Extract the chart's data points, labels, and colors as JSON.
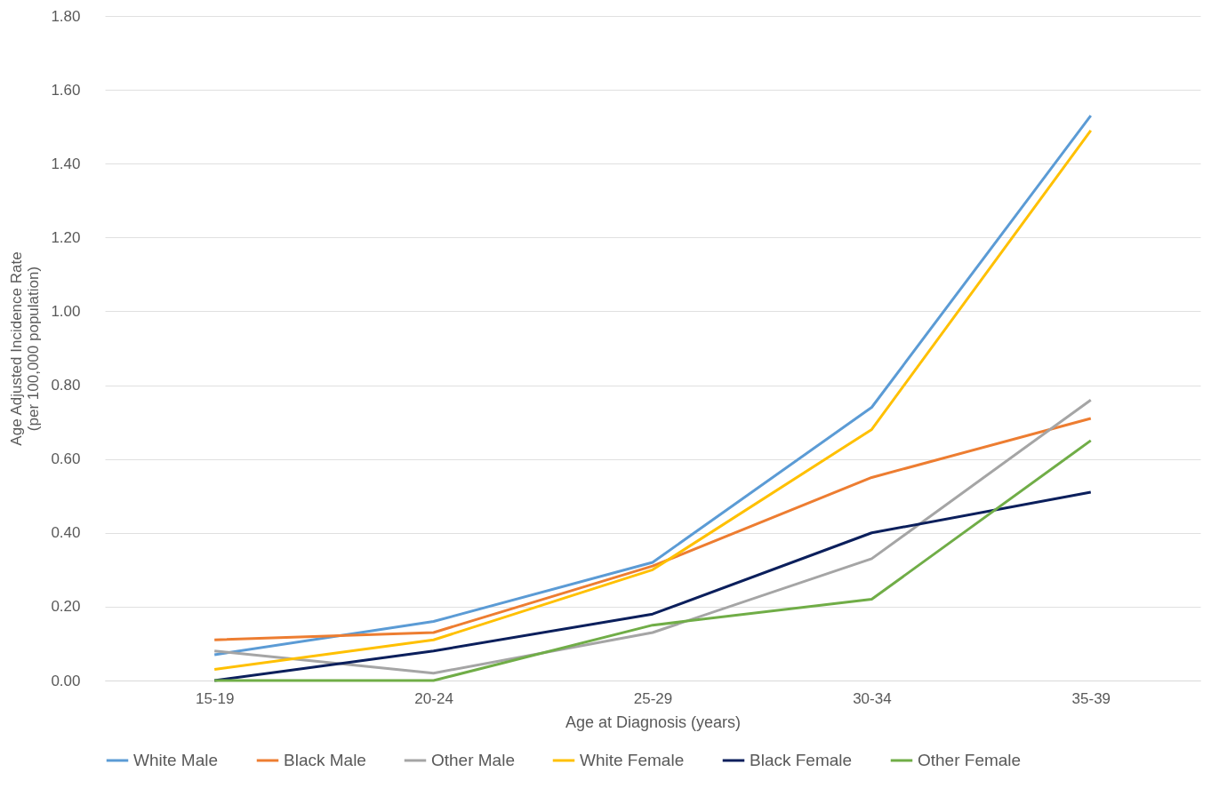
{
  "chart_data": {
    "type": "line",
    "xlabel": "Age at Diagnosis (years)",
    "ylabel": "Age Adjusted Incidence Rate\n(per 100,000 population)",
    "categories": [
      "15-19",
      "20-24",
      "25-29",
      "30-34",
      "35-39"
    ],
    "series": [
      {
        "name": "White Male",
        "color": "#5b9bd5",
        "values": [
          0.07,
          0.16,
          0.32,
          0.74,
          1.53
        ]
      },
      {
        "name": "Black Male",
        "color": "#ed7d31",
        "values": [
          0.11,
          0.13,
          0.31,
          0.55,
          0.71
        ]
      },
      {
        "name": "Other Male",
        "color": "#a5a5a5",
        "values": [
          0.08,
          0.02,
          0.13,
          0.33,
          0.76
        ]
      },
      {
        "name": "White Female",
        "color": "#ffc000",
        "values": [
          0.03,
          0.11,
          0.3,
          0.68,
          1.49
        ]
      },
      {
        "name": "Black Female",
        "color": "#0b1f5c",
        "values": [
          0,
          0.08,
          0.18,
          0.4,
          0.51
        ]
      },
      {
        "name": "Other Female",
        "color": "#70ad47",
        "values": [
          0,
          0,
          0.15,
          0.22,
          0.65
        ]
      }
    ],
    "ylim": [
      0,
      1.8
    ],
    "yticks": [
      {
        "value": 0,
        "label": "0.00"
      },
      {
        "value": 0.2,
        "label": "0.20"
      },
      {
        "value": 0.4,
        "label": "0.40"
      },
      {
        "value": 0.6,
        "label": "0.60"
      },
      {
        "value": 0.8,
        "label": "0.80"
      },
      {
        "value": 1.0,
        "label": "1.00"
      },
      {
        "value": 1.2,
        "label": "1.20"
      },
      {
        "value": 1.4,
        "label": "1.40"
      },
      {
        "value": 1.6,
        "label": "1.60"
      },
      {
        "value": 1.8,
        "label": "1.80"
      }
    ],
    "grid": "y",
    "legend": "bottom",
    "line_style": "solid",
    "marker": "none"
  }
}
